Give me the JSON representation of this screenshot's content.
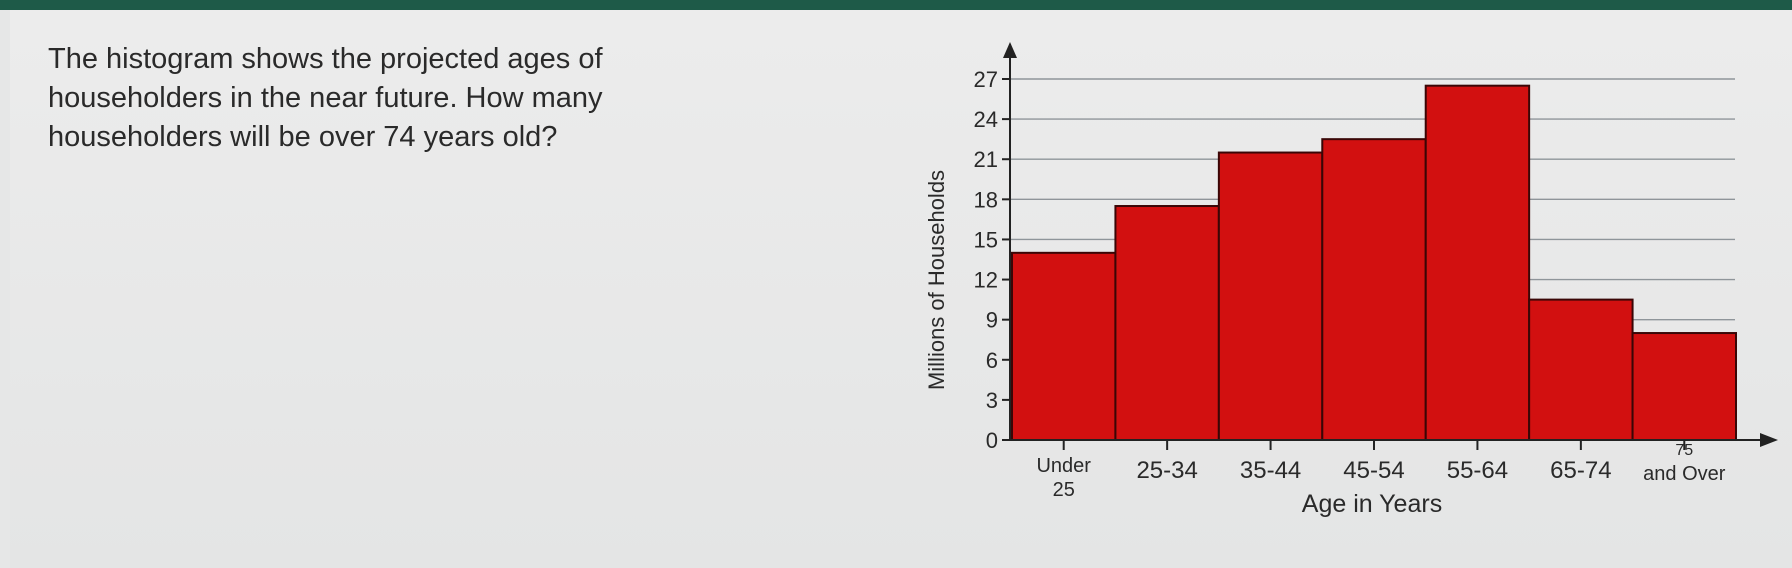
{
  "question": "The histogram shows the projected ages of householders in the near future. How many householders will be over 74 years old?",
  "chart_data": {
    "type": "bar",
    "title": "",
    "xlabel": "Age in Years",
    "ylabel": "Millions of Households",
    "categories": [
      "Under 25",
      "25-34",
      "35-44",
      "45-54",
      "55-64",
      "65-74",
      "75 and Over"
    ],
    "category_lines": [
      [
        "Under",
        "25"
      ],
      [
        "25-34"
      ],
      [
        "35-44"
      ],
      [
        "45-54"
      ],
      [
        "55-64"
      ],
      [
        "65-74"
      ],
      [
        "75",
        "and Over"
      ]
    ],
    "values": [
      14,
      17.5,
      21.5,
      22.5,
      26.5,
      10.5,
      8
    ],
    "yticks": [
      0,
      3,
      6,
      9,
      12,
      15,
      18,
      21,
      24,
      27
    ],
    "ylim": [
      0,
      27
    ],
    "grid": true,
    "bar_color": "#d21010"
  }
}
